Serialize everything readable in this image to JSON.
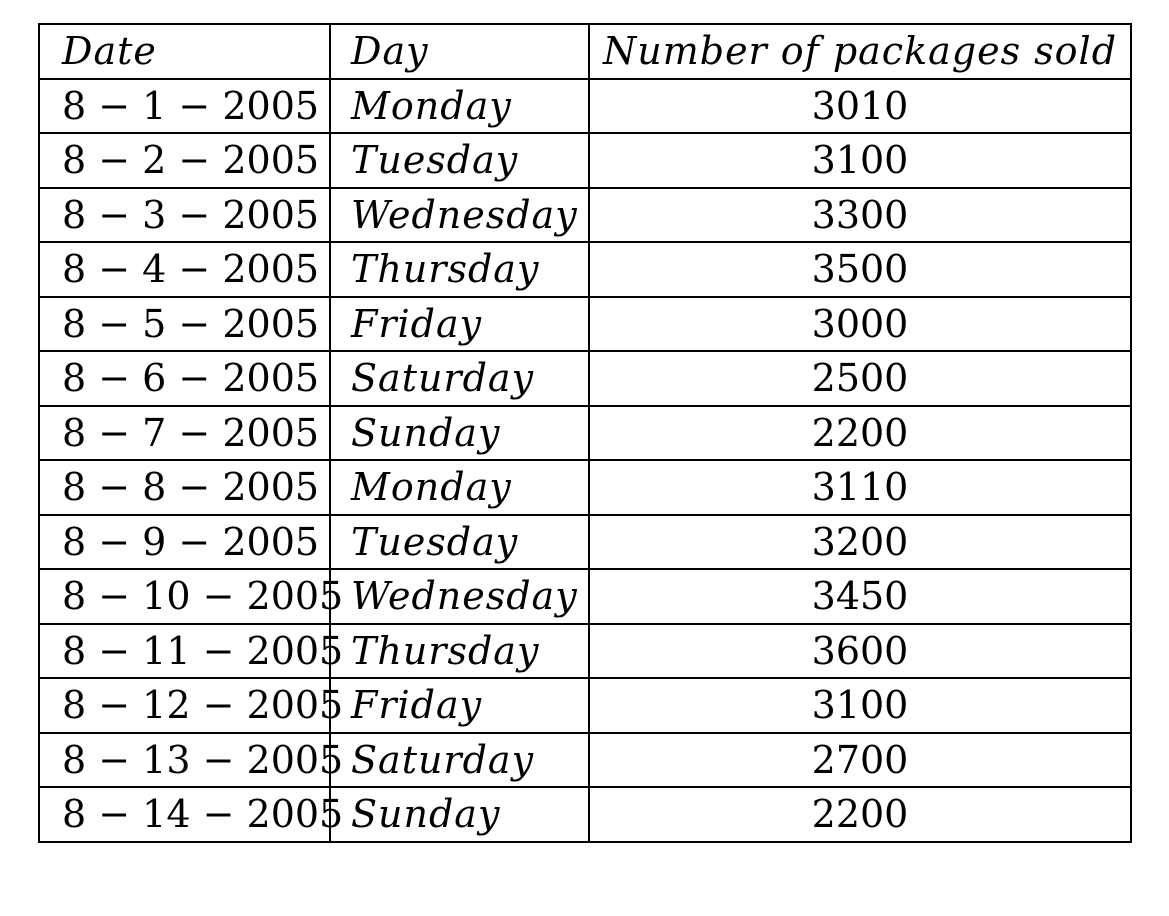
{
  "table": {
    "headers": {
      "date": "Date",
      "day": "Day",
      "packages": "Number of packages sold"
    },
    "rows": [
      {
        "date": "8 − 1 − 2005",
        "day": "Monday",
        "packages": "3010"
      },
      {
        "date": "8 − 2 − 2005",
        "day": "Tuesday",
        "packages": "3100"
      },
      {
        "date": "8 − 3 − 2005",
        "day": "Wednesday",
        "packages": "3300"
      },
      {
        "date": "8 − 4 − 2005",
        "day": "Thursday",
        "packages": "3500"
      },
      {
        "date": "8 − 5 − 2005",
        "day": "Friday",
        "packages": "3000"
      },
      {
        "date": "8 − 6 − 2005",
        "day": "Saturday",
        "packages": "2500"
      },
      {
        "date": "8 − 7 − 2005",
        "day": "Sunday",
        "packages": "2200"
      },
      {
        "date": "8 − 8 − 2005",
        "day": "Monday",
        "packages": "3110"
      },
      {
        "date": "8 − 9 − 2005",
        "day": "Tuesday",
        "packages": "3200"
      },
      {
        "date": "8 − 10 − 2005",
        "day": "Wednesday",
        "packages": "3450"
      },
      {
        "date": "8 − 11 − 2005",
        "day": "Thursday",
        "packages": "3600"
      },
      {
        "date": "8 − 12 − 2005",
        "day": "Friday",
        "packages": "3100"
      },
      {
        "date": "8 − 13 − 2005",
        "day": "Saturday",
        "packages": "2700"
      },
      {
        "date": "8 − 14 − 2005",
        "day": "Sunday",
        "packages": "2200"
      }
    ]
  }
}
